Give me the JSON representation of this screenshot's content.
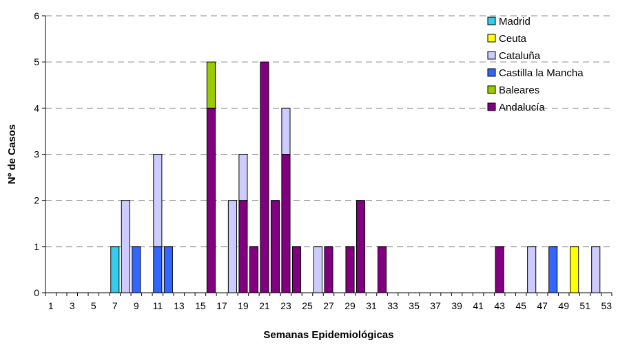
{
  "chart_data": {
    "type": "bar",
    "stacked": true,
    "title": "",
    "xlabel": "Semanas Epidemiológicas",
    "ylabel": "Nº de Casos",
    "ylim": [
      0,
      6
    ],
    "yticks": [
      0,
      1,
      2,
      3,
      4,
      5,
      6
    ],
    "xlim": [
      1,
      53
    ],
    "xtick_labels": [
      "1",
      "3",
      "5",
      "7",
      "9",
      "11",
      "13",
      "15",
      "17",
      "19",
      "21",
      "23",
      "25",
      "27",
      "29",
      "31",
      "33",
      "35",
      "37",
      "39",
      "41",
      "43",
      "45",
      "47",
      "49",
      "51",
      "53"
    ],
    "grid": "horizontal dashed",
    "legend_position": "top-right",
    "series": [
      {
        "name": "Madrid",
        "color": "#33CCEE",
        "points": [
          [
            7,
            1
          ]
        ]
      },
      {
        "name": "Ceuta",
        "color": "#FFFF00",
        "points": [
          [
            50,
            1
          ]
        ]
      },
      {
        "name": "Cataluña",
        "color": "#CCCCFF",
        "points": [
          [
            8,
            2
          ],
          [
            11,
            2
          ],
          [
            18,
            2
          ],
          [
            19,
            1
          ],
          [
            23,
            1
          ],
          [
            26,
            1
          ],
          [
            46,
            1
          ],
          [
            52,
            1
          ]
        ]
      },
      {
        "name": "Castilla la Mancha",
        "color": "#3366FF",
        "points": [
          [
            9,
            1
          ],
          [
            11,
            1
          ],
          [
            12,
            1
          ],
          [
            48,
            1
          ]
        ]
      },
      {
        "name": "Baleares",
        "color": "#99CC00",
        "points": [
          [
            16,
            1
          ]
        ]
      },
      {
        "name": "Andalucía",
        "color": "#800080",
        "points": [
          [
            16,
            4
          ],
          [
            19,
            2
          ],
          [
            20,
            1
          ],
          [
            21,
            5
          ],
          [
            22,
            2
          ],
          [
            23,
            3
          ],
          [
            24,
            1
          ],
          [
            27,
            1
          ],
          [
            29,
            1
          ],
          [
            30,
            2
          ],
          [
            32,
            1
          ],
          [
            43,
            1
          ]
        ]
      }
    ],
    "stack_order": [
      "Andalucía",
      "Castilla la Mancha",
      "Madrid",
      "Baleares",
      "Cataluña",
      "Ceuta"
    ]
  }
}
